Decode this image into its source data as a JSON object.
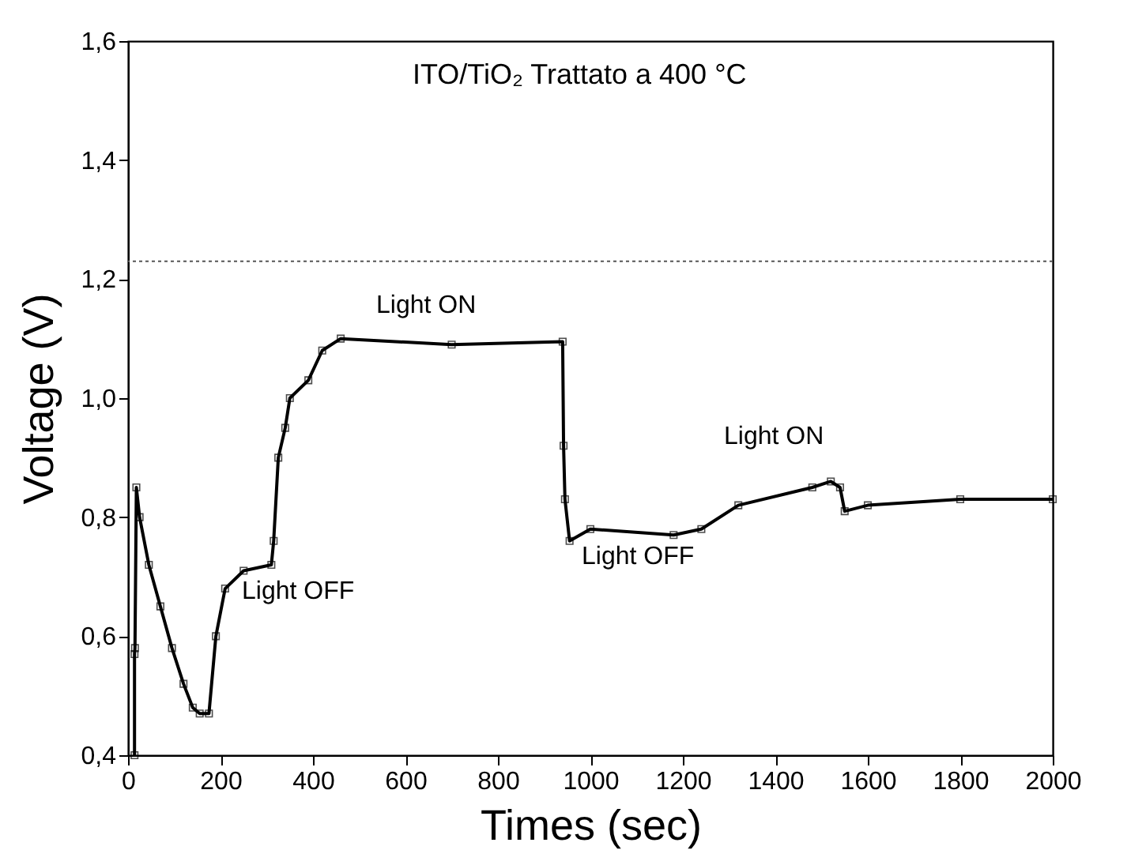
{
  "chart_data": {
    "type": "line",
    "title": "ITO/TiO₂    Trattato a 400 °C",
    "xlabel": "Times (sec)",
    "ylabel": "Voltage (V)",
    "x": [
      14,
      14,
      15,
      18,
      25,
      45,
      70,
      95,
      120,
      140,
      155,
      175,
      190,
      210,
      250,
      310,
      315,
      325,
      340,
      350,
      390,
      420,
      460,
      700,
      940,
      942,
      945,
      955,
      1000,
      1180,
      1240,
      1320,
      1480,
      1520,
      1540,
      1550,
      1600,
      1800,
      2000
    ],
    "series": [
      {
        "color": "#000000",
        "values": [
          0.4,
          0.57,
          0.58,
          0.85,
          0.8,
          0.72,
          0.65,
          0.58,
          0.52,
          0.48,
          0.47,
          0.47,
          0.6,
          0.68,
          0.71,
          0.72,
          0.76,
          0.9,
          0.95,
          1.0,
          1.03,
          1.08,
          1.1,
          1.09,
          1.095,
          0.92,
          0.83,
          0.76,
          0.78,
          0.77,
          0.78,
          0.82,
          0.85,
          0.86,
          0.85,
          0.81,
          0.82,
          0.83,
          0.83
        ]
      }
    ],
    "xlim": [
      0,
      2000
    ],
    "xticks": [
      0,
      200,
      400,
      600,
      800,
      1000,
      1200,
      1400,
      1600,
      1800,
      2000
    ],
    "ylim": [
      0.4,
      1.6
    ],
    "yticks": [
      {
        "value": 0.4,
        "label": "0,4"
      },
      {
        "value": 0.6,
        "label": "0,6"
      },
      {
        "value": 0.8,
        "label": "0,8"
      },
      {
        "value": 1.0,
        "label": "1,0"
      },
      {
        "value": 1.2,
        "label": "1,2"
      },
      {
        "value": 1.4,
        "label": "1,4"
      },
      {
        "value": 1.6,
        "label": "1,6"
      }
    ],
    "ref_lines": [
      {
        "axis": "y",
        "value": 1.23,
        "line_style": "dotted",
        "color": "#555555"
      }
    ],
    "annotations": [
      "Light OFF",
      "Light ON",
      "Light OFF",
      "Light ON"
    ],
    "marker": "square",
    "line_style": "solid",
    "grid": false
  }
}
